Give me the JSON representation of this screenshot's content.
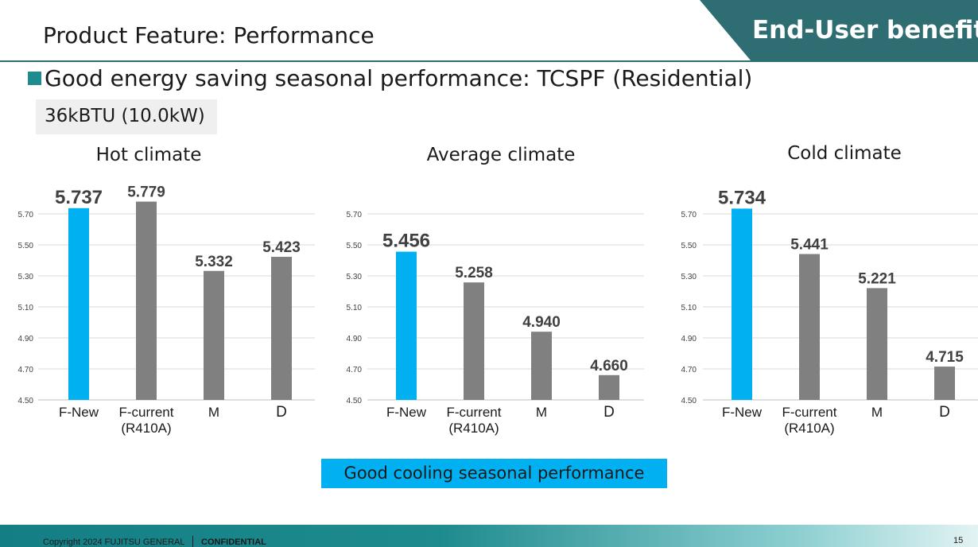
{
  "header": {
    "title": "Product Feature: Performance",
    "badge": "End-User benefits"
  },
  "headline": "Good energy saving seasonal performance: TCSPF (Residential)",
  "capacity_label": "36kBTU (10.0kW)",
  "callout": "Good cooling seasonal performance",
  "footer": {
    "copyright": "Copyright 2024 FUJITSU GENERAL",
    "confidential": "CONFIDENTIAL",
    "page_number": "15"
  },
  "colors": {
    "accent": "#2e6e72",
    "highlight_bar": "#00b0f0",
    "other_bar": "#808080",
    "callout_bg": "#00b0f0"
  },
  "chart_data": [
    {
      "type": "bar",
      "title": "Hot climate",
      "categories": [
        "F-New",
        "F-current\n(R410A)",
        "M",
        "D"
      ],
      "values": [
        5.737,
        5.779,
        5.332,
        5.423
      ],
      "value_labels": [
        "5.737",
        "5.779",
        "5.332",
        "5.423"
      ],
      "highlight_index": 0,
      "ylim": [
        4.5,
        5.7
      ],
      "yticks": [
        "4.50",
        "4.70",
        "4.90",
        "5.10",
        "5.30",
        "5.50",
        "5.70"
      ],
      "grid": true,
      "xlabel": "",
      "ylabel": ""
    },
    {
      "type": "bar",
      "title": "Average climate",
      "categories": [
        "F-New",
        "F-current\n(R410A)",
        "M",
        "D"
      ],
      "values": [
        5.456,
        5.258,
        4.94,
        4.66
      ],
      "value_labels": [
        "5.456",
        "5.258",
        "4.940",
        "4.660"
      ],
      "highlight_index": 0,
      "ylim": [
        4.5,
        5.7
      ],
      "yticks": [
        "4.50",
        "4.70",
        "4.90",
        "5.10",
        "5.30",
        "5.50",
        "5.70"
      ],
      "grid": true,
      "xlabel": "",
      "ylabel": ""
    },
    {
      "type": "bar",
      "title": "Cold climate",
      "categories": [
        "F-New",
        "F-current\n(R410A)",
        "M",
        "D"
      ],
      "values": [
        5.734,
        5.441,
        5.221,
        4.715
      ],
      "value_labels": [
        "5.734",
        "5.441",
        "5.221",
        "4.715"
      ],
      "highlight_index": 0,
      "ylim": [
        4.5,
        5.7
      ],
      "yticks": [
        "4.50",
        "4.70",
        "4.90",
        "5.10",
        "5.30",
        "5.50",
        "5.70"
      ],
      "grid": true,
      "xlabel": "",
      "ylabel": ""
    }
  ]
}
